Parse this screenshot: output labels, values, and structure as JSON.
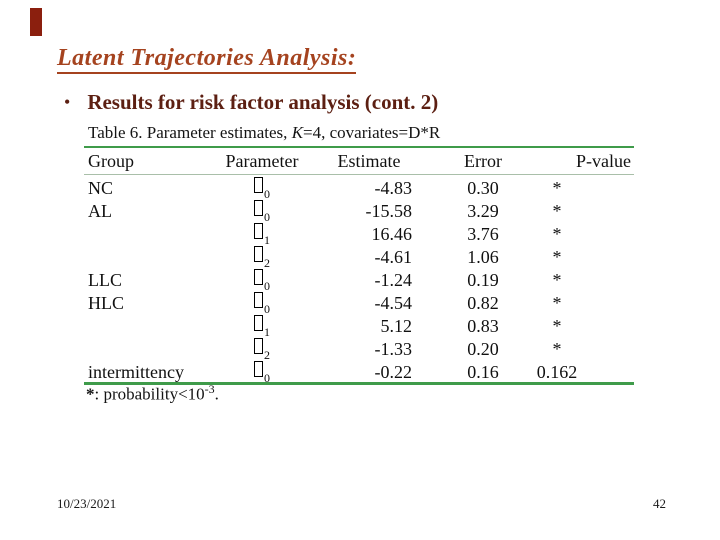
{
  "colors": {
    "accent_bar": "#8B1F0E",
    "title_red": "#A5431F",
    "heading_maroon": "#5C1F12",
    "line_green": "#3F9B4A",
    "divider": "#A9BFA9"
  },
  "slide": {
    "title": "Latent Trajectories Analysis:",
    "bullet_char": "•",
    "bullet_text": "Results for risk factor analysis (cont. 2)",
    "caption": {
      "prefix": "Table 6. Parameter estimates, ",
      "k_symbol": "K",
      "suffix": "=4, covariates=D*R"
    },
    "footnote": {
      "star": "*",
      "text": ": probability<10",
      "superscript": "-3",
      "period": "."
    },
    "footer": {
      "date": "10/23/2021",
      "page_number": "42"
    }
  },
  "table": {
    "headers": [
      "Group",
      "Parameter",
      "Estimate",
      "Error",
      "P-value"
    ],
    "rows": [
      {
        "group": "NC",
        "param_sub": "0",
        "estimate": "-4.83",
        "error": "0.30",
        "pvalue": "*"
      },
      {
        "group": "AL",
        "param_sub": "0",
        "estimate": "-15.58",
        "error": "3.29",
        "pvalue": "*"
      },
      {
        "group": "",
        "param_sub": "1",
        "estimate": "16.46",
        "error": "3.76",
        "pvalue": "*"
      },
      {
        "group": "",
        "param_sub": "2",
        "estimate": "-4.61",
        "error": "1.06",
        "pvalue": "*"
      },
      {
        "group": "LLC",
        "param_sub": "0",
        "estimate": "-1.24",
        "error": "0.19",
        "pvalue": "*"
      },
      {
        "group": "HLC",
        "param_sub": "0",
        "estimate": "-4.54",
        "error": "0.82",
        "pvalue": "*"
      },
      {
        "group": "",
        "param_sub": "1",
        "estimate": "5.12",
        "error": "0.83",
        "pvalue": "*"
      },
      {
        "group": "",
        "param_sub": "2",
        "estimate": "-1.33",
        "error": "0.20",
        "pvalue": "*"
      },
      {
        "group": "intermittency",
        "param_sub": "0",
        "estimate": "-0.22",
        "error": "0.16",
        "pvalue": "0.162"
      }
    ]
  }
}
